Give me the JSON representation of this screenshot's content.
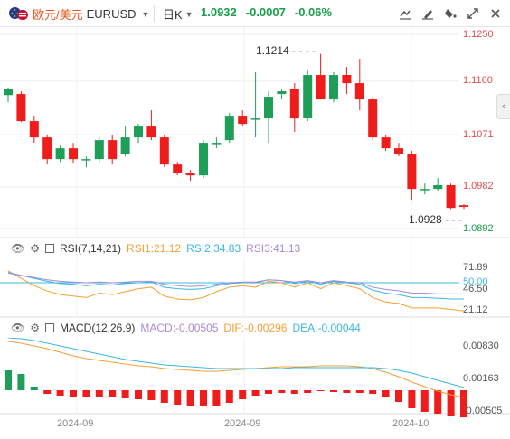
{
  "header": {
    "symbol_cn": "欧元/美元",
    "symbol_code": "EURUSD",
    "timeframe": "日K",
    "price": "1.0932",
    "change": "-0.0007",
    "change_pct": "-0.06%"
  },
  "toolbar": {
    "icons": [
      "draw-line-icon",
      "edit-tool-icon",
      "fill-tool-icon",
      "expand-icon",
      "close-icon"
    ]
  },
  "main_chart": {
    "y_labels": [
      "1.1250",
      "1.1160",
      "1.1071",
      "1.0982",
      "1.0892"
    ],
    "y_values": [
      1.125,
      1.116,
      1.1071,
      1.0982,
      1.0892
    ],
    "high_marker": "1.1214",
    "low_marker": "1.0928",
    "colors": {
      "up": "#1f9e57",
      "down": "#ef1c1c"
    }
  },
  "rsi": {
    "name": "RSI(7,14,21)",
    "rsi1": "RSI1:21.12",
    "rsi2": "RSI2:34.83",
    "rsi3": "RSI3:41.13",
    "y_labels": [
      "71.89",
      "50.00",
      "46.50",
      "21.12"
    ],
    "colors": {
      "rsi1": "#f5a033",
      "rsi2": "#3ab7e6",
      "rsi3": "#a78bd8",
      "ref": "#3ab7e6"
    }
  },
  "macd": {
    "name": "MACD(12,26,9)",
    "macd": "MACD:-0.00505",
    "dif": "DIF:-0.00296",
    "dea": "DEA:-0.00044",
    "y_labels": [
      "0.00830",
      "0.00163",
      "-0.00505"
    ],
    "colors": {
      "macd": "#a78bd8",
      "dif": "#f5a033",
      "dea": "#3ab7e6"
    }
  },
  "x_axis": {
    "labels": [
      "2024-09",
      "2024-09",
      "2024-10"
    ]
  },
  "candles": [
    [
      1.1138,
      1.115,
      1.1125,
      1.1152
    ],
    [
      1.114,
      1.109,
      1.1088,
      1.1145
    ],
    [
      1.109,
      1.106,
      1.105,
      1.11
    ],
    [
      1.106,
      1.102,
      1.101,
      1.1065
    ],
    [
      1.102,
      1.104,
      1.1015,
      1.1045
    ],
    [
      1.104,
      1.102,
      1.1012,
      1.105
    ],
    [
      1.102,
      1.102,
      1.1005,
      1.1025
    ],
    [
      1.102,
      1.1055,
      1.1015,
      1.106
    ],
    [
      1.1055,
      1.102,
      1.101,
      1.1065
    ],
    [
      1.103,
      1.106,
      1.1025,
      1.108
    ],
    [
      1.106,
      1.108,
      1.105,
      1.1085
    ],
    [
      1.108,
      1.106,
      1.1055,
      1.111
    ],
    [
      1.106,
      1.101,
      1.1005,
      1.1065
    ],
    [
      1.101,
      1.0995,
      1.099,
      1.1015
    ],
    [
      1.0995,
      1.099,
      1.098,
      1.1
    ],
    [
      1.099,
      1.105,
      1.0985,
      1.1055
    ],
    [
      1.105,
      1.105,
      1.104,
      1.106
    ],
    [
      1.1055,
      1.11,
      1.105,
      1.1105
    ],
    [
      1.11,
      1.1085,
      1.108,
      1.111
    ],
    [
      1.1095,
      1.1095,
      1.106,
      1.118
    ],
    [
      1.1095,
      1.1135,
      1.105,
      1.1145
    ],
    [
      1.114,
      1.1145,
      1.113,
      1.115
    ],
    [
      1.115,
      1.1095,
      1.107,
      1.116
    ],
    [
      1.1095,
      1.1175,
      1.109,
      1.1185
    ],
    [
      1.1175,
      1.113,
      1.113,
      1.1214
    ],
    [
      1.113,
      1.1175,
      1.1125,
      1.118
    ],
    [
      1.1175,
      1.116,
      1.114,
      1.119
    ],
    [
      1.116,
      1.113,
      1.111,
      1.1205
    ],
    [
      1.113,
      1.106,
      1.1055,
      1.1135
    ],
    [
      1.106,
      1.104,
      1.1035,
      1.1065
    ],
    [
      1.104,
      1.103,
      1.1025,
      1.105
    ],
    [
      1.103,
      1.0965,
      1.0945,
      1.1035
    ],
    [
      1.0965,
      1.0965,
      1.0955,
      1.0975
    ],
    [
      1.0965,
      1.0972,
      1.096,
      1.0985
    ],
    [
      1.0972,
      1.093,
      1.0928,
      1.0975
    ],
    [
      1.0935,
      1.0932,
      1.0928,
      1.0937
    ]
  ]
}
